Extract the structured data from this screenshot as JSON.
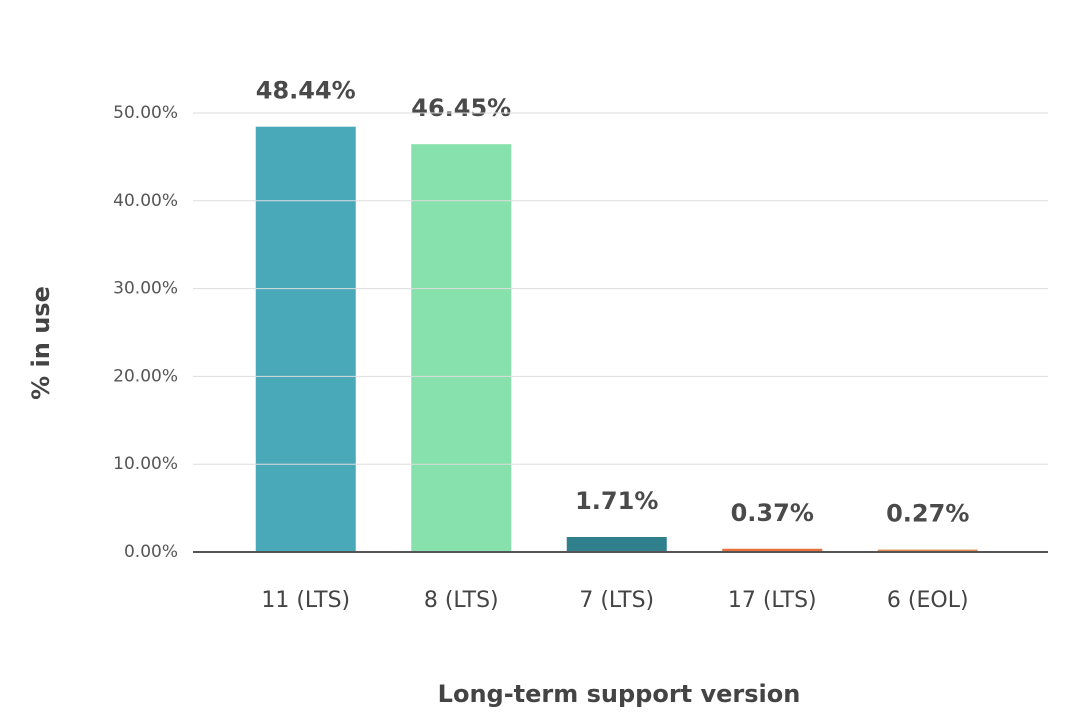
{
  "chart_data": {
    "type": "bar",
    "x_label": "Long-term support version",
    "y_label": "% in use",
    "categories": [
      "11 (LTS)",
      "8 (LTS)",
      "7 (LTS)",
      "17 (LTS)",
      "6 (EOL)"
    ],
    "values": [
      48.44,
      46.45,
      1.71,
      0.37,
      0.27
    ],
    "value_labels": [
      "48.44%",
      "46.45%",
      "1.71%",
      "0.37%",
      "0.27%"
    ],
    "colors": [
      "#4aa9b9",
      "#87e1ac",
      "#2f7f8d",
      "#e8703a",
      "#e08a50"
    ],
    "ylim": [
      0,
      50
    ],
    "yticks": [
      {
        "value": 0,
        "label": "0.00%"
      },
      {
        "value": 10,
        "label": "10.00%"
      },
      {
        "value": 20,
        "label": "20.00%"
      },
      {
        "value": 30,
        "label": "30.00%"
      },
      {
        "value": 40,
        "label": "40.00%"
      },
      {
        "value": 50,
        "label": "50.00%"
      }
    ],
    "grid": true
  }
}
